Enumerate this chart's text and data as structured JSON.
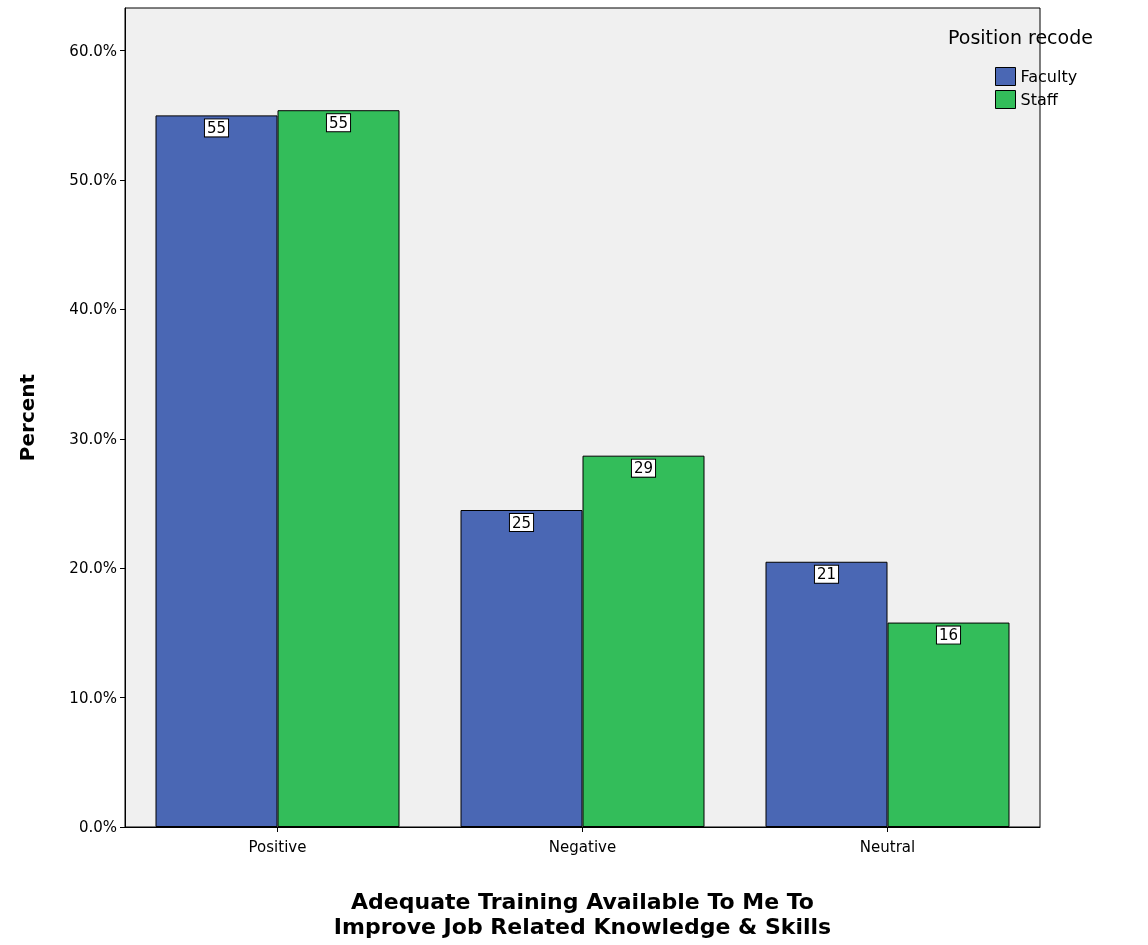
{
  "chart_data": {
    "type": "bar",
    "xlabel": "Adequate Training Available To Me To\nImprove Job Related Knowledge & Skills",
    "ylabel": "Percent",
    "legend_title": "Position recode",
    "categories": [
      "Positive",
      "Negative",
      "Neutral"
    ],
    "series": [
      {
        "name": "Faculty",
        "color": "#4a67b4",
        "values": [
          55.0,
          24.5,
          20.5
        ],
        "value_labels": [
          "55",
          "25",
          "21"
        ]
      },
      {
        "name": "Staff",
        "color": "#33bd5a",
        "values": [
          55.4,
          28.7,
          15.8
        ],
        "value_labels": [
          "55",
          "29",
          "16"
        ]
      }
    ],
    "ylim": [
      0,
      63.3
    ],
    "yticks": [
      {
        "value": 0,
        "label": "0.0%"
      },
      {
        "value": 10,
        "label": "10.0%"
      },
      {
        "value": 20,
        "label": "20.0%"
      },
      {
        "value": 30,
        "label": "30.0%"
      },
      {
        "value": 40,
        "label": "40.0%"
      },
      {
        "value": 50,
        "label": "50.0%"
      },
      {
        "value": 60,
        "label": "60.0%"
      }
    ],
    "grid": false,
    "legend": "top right"
  }
}
